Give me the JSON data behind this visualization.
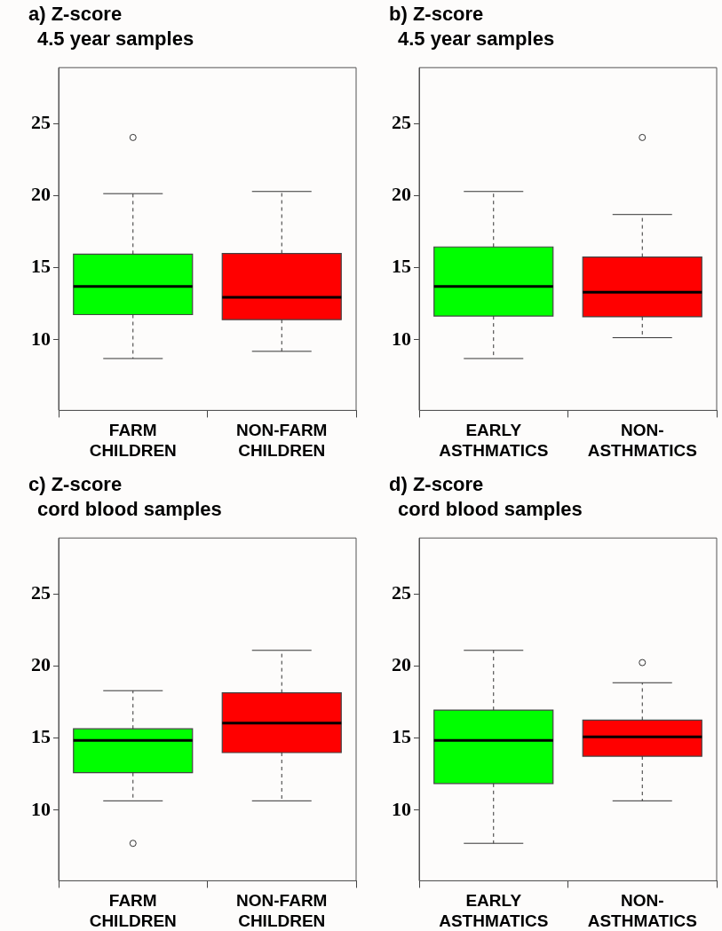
{
  "chart_data": [
    {
      "type": "box",
      "title": "a) Z-score",
      "subtitle": "4.5 year samples",
      "categories": [
        "FARM\nCHILDREN",
        "NON-FARM\nCHILDREN"
      ],
      "colors": [
        "#00ff00",
        "#ff0000"
      ],
      "boxes": [
        {
          "low": 8.7,
          "q1": 11.75,
          "median": 13.7,
          "q3": 15.95,
          "high": 20.15,
          "outliers": [
            24.05
          ]
        },
        {
          "low": 9.2,
          "q1": 11.4,
          "median": 12.95,
          "q3": 16.0,
          "high": 20.3
        }
      ],
      "ylim": [
        5.1,
        28.9
      ],
      "yticks": [
        10,
        15,
        20,
        25
      ],
      "grid": false
    },
    {
      "type": "box",
      "title": "b) Z-score",
      "subtitle": "4.5 year samples",
      "categories": [
        "EARLY\nASTHMATICS",
        "NON-\nASTHMATICS"
      ],
      "colors": [
        "#00ff00",
        "#ff0000"
      ],
      "boxes": [
        {
          "low": 8.7,
          "q1": 11.65,
          "median": 13.7,
          "q3": 16.45,
          "high": 20.3
        },
        {
          "low": 10.15,
          "q1": 11.6,
          "median": 13.3,
          "q3": 15.75,
          "high": 18.7,
          "outliers": [
            24.05
          ]
        }
      ],
      "ylim": [
        5.1,
        28.9
      ],
      "yticks": [
        10,
        15,
        20,
        25
      ],
      "grid": false
    },
    {
      "type": "box",
      "title": "c) Z-score",
      "subtitle": "cord blood samples",
      "categories": [
        "FARM\nCHILDREN",
        "NON-FARM\nCHILDREN"
      ],
      "colors": [
        "#00ff00",
        "#ff0000"
      ],
      "boxes": [
        {
          "low": 10.65,
          "q1": 12.6,
          "median": 14.85,
          "q3": 15.65,
          "high": 18.3,
          "outliers": [
            7.7
          ]
        },
        {
          "low": 10.65,
          "q1": 14.0,
          "median": 16.05,
          "q3": 18.15,
          "high": 21.1
        }
      ],
      "ylim": [
        5.1,
        28.9
      ],
      "yticks": [
        10,
        15,
        20,
        25
      ],
      "grid": false
    },
    {
      "type": "box",
      "title": "d) Z-score",
      "subtitle": "cord blood samples",
      "categories": [
        "EARLY\nASTHMATICS",
        "NON-\nASTHMATICS"
      ],
      "colors": [
        "#00ff00",
        "#ff0000"
      ],
      "boxes": [
        {
          "low": 7.7,
          "q1": 11.85,
          "median": 14.85,
          "q3": 16.95,
          "high": 21.1
        },
        {
          "low": 10.65,
          "q1": 13.75,
          "median": 15.1,
          "q3": 16.25,
          "high": 18.85,
          "outliers": [
            20.25
          ]
        }
      ],
      "ylim": [
        5.1,
        28.9
      ],
      "yticks": [
        10,
        15,
        20,
        25
      ],
      "grid": false
    }
  ]
}
